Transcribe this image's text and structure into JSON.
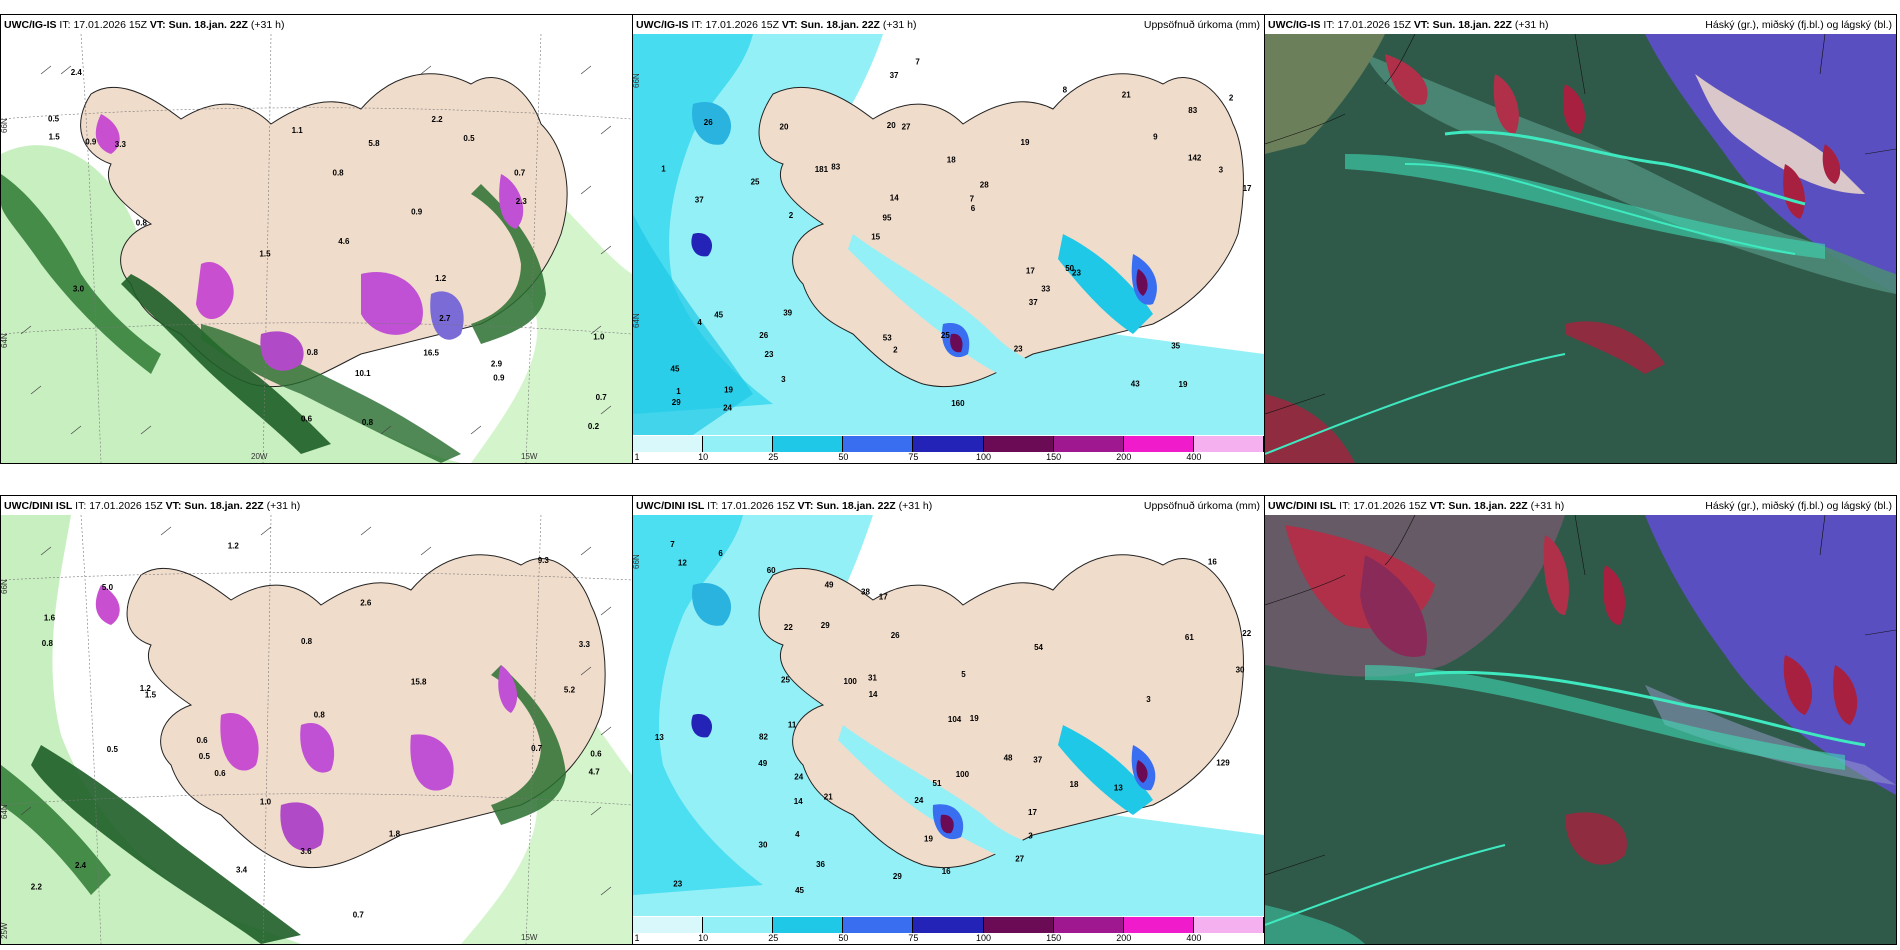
{
  "rows": [
    {
      "model": "UWC/IG-IS",
      "it_label": "IT:",
      "it": "17.01.2026 15Z",
      "vt_label": "VT:",
      "vt": "Sun. 18.jan. 22Z",
      "lead": "(+31 h)"
    },
    {
      "model": "UWC/DINI ISL",
      "it_label": "IT:",
      "it": "17.01.2026 15Z",
      "vt_label": "VT:",
      "vt": "Sun. 18.jan. 22Z",
      "lead": "(+31 h)"
    }
  ],
  "precip_title": "Uppsöfnuð úrkoma (mm)",
  "cloud_title": "Háský (gr.), miðský (fj.bl.) og lágský (bl.)",
  "colorbar": {
    "labels": [
      "1",
      "10",
      "25",
      "50",
      "75",
      "100",
      "150",
      "200",
      "400"
    ],
    "colors": [
      "#d8f8fb",
      "#93f0f7",
      "#1ec8e6",
      "#3a6ef0",
      "#2323b8",
      "#6b0a55",
      "#a01890",
      "#f01ccb",
      "#f5b0f0"
    ]
  },
  "geo_labels": {
    "lat66": "66N",
    "lat64": "64N",
    "lon25": "25W",
    "lon20": "20W",
    "lon15": "15W",
    "lat65": "65N"
  },
  "precip_values_top": [
    "19",
    "37",
    "83",
    "15",
    "19",
    "19",
    "20",
    "18",
    "45",
    "83",
    "45",
    "23",
    "27",
    "28",
    "23",
    "26",
    "37",
    "17",
    "17",
    "142",
    "95",
    "53",
    "14",
    "20",
    "8",
    "39",
    "43",
    "35",
    "50",
    "160",
    "181",
    "25",
    "37",
    "3",
    "3",
    "7",
    "1",
    "2",
    "6",
    "4",
    "9",
    "2",
    "33",
    "23",
    "26",
    "24",
    "29",
    "25",
    "21",
    "7",
    "2",
    "1"
  ],
  "precip_values_bottom": [
    "12",
    "7",
    "13",
    "16",
    "22",
    "17",
    "17",
    "21",
    "23",
    "18",
    "14",
    "19",
    "45",
    "49",
    "51",
    "100",
    "24",
    "30",
    "29",
    "31",
    "30",
    "19",
    "36",
    "11",
    "82",
    "100",
    "24",
    "13",
    "29",
    "38",
    "48",
    "49",
    "61",
    "129",
    "104",
    "25",
    "60",
    "14",
    "3",
    "54",
    "22",
    "16",
    "37",
    "26",
    "6",
    "5",
    "4",
    "3",
    "27"
  ],
  "wind_values_top": [
    "0.8",
    "0.9",
    "0.5",
    "0.7",
    "0.6",
    "1.1",
    "0.8",
    "2.2",
    "0.8",
    "3.0",
    "2.9",
    "5.8",
    "1.2",
    "0.9",
    "0.7",
    "0.5",
    "1.0",
    "16.5",
    "10.1",
    "2.7",
    "1.5",
    "0.8",
    "0.9",
    "1.5",
    "2.3",
    "3.3",
    "2.4",
    "0.2",
    "4.6"
  ],
  "wind_values_bottom": [
    "1.0",
    "0.5",
    "0.7",
    "0.8",
    "0.5",
    "0.6",
    "1.2",
    "2.4",
    "3.3",
    "5.2",
    "3.6",
    "5.0",
    "4.7",
    "1.8",
    "1.5",
    "15.8",
    "9.3",
    "0.8",
    "1.2",
    "0.7",
    "0.6",
    "3.4",
    "2.2",
    "1.6",
    "0.8",
    "2.6",
    "0.6"
  ]
}
